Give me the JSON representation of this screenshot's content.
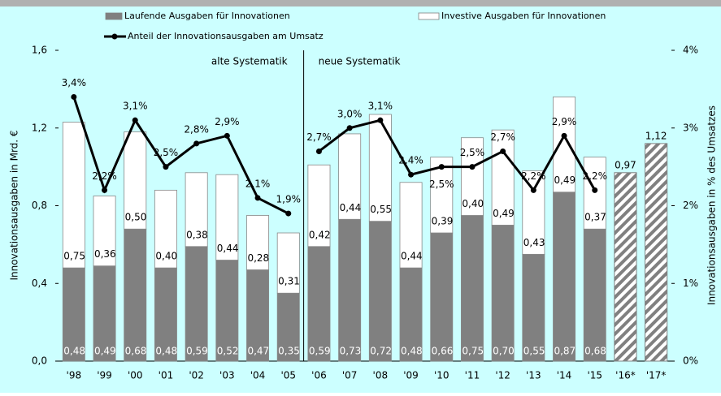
{
  "chart_data": {
    "type": "bar",
    "y_label": "Innovationsausgaben in Mrd. €",
    "y2_label": "Innovationsausgaben in % des Umsatzes",
    "categories": [
      "'98",
      "'99",
      "'00",
      "'01",
      "'02",
      "'03",
      "'04",
      "'05",
      "'06",
      "'07",
      "'08",
      "'09",
      "'10",
      "'11",
      "'12",
      "'13",
      "'14",
      "'15",
      "'16*",
      "'17*"
    ],
    "stacked": true,
    "series": [
      {
        "name": "Laufende Ausgaben für Innovationen",
        "color": "#808080",
        "values": [
          0.48,
          0.49,
          0.68,
          0.48,
          0.59,
          0.52,
          0.47,
          0.35,
          0.59,
          0.73,
          0.72,
          0.48,
          0.66,
          0.75,
          0.7,
          0.55,
          0.87,
          0.68,
          null,
          null
        ],
        "value_labels": [
          "0,48",
          "0,49",
          "0,68",
          "0,48",
          "0,59",
          "0,52",
          "0,47",
          "0,35",
          "0,59",
          "0,73",
          "0,72",
          "0,48",
          "0,66",
          "0,75",
          "0,70",
          "0,55",
          "0,87",
          "0,68",
          null,
          null
        ]
      },
      {
        "name": "Investive Ausgaben für Innovationen",
        "color": "#ffffff",
        "values": [
          0.75,
          0.36,
          0.5,
          0.4,
          0.38,
          0.44,
          0.28,
          0.31,
          0.42,
          0.44,
          0.55,
          0.44,
          0.39,
          0.4,
          0.49,
          0.43,
          0.49,
          0.37,
          null,
          null
        ],
        "value_labels": [
          "0,75",
          "0,36",
          "0,50",
          "0,40",
          "0,38",
          "0,44",
          "0,28",
          "0,31",
          "0,42",
          "0,44",
          "0,55",
          "0,44",
          "0,39",
          "0,40",
          "0,49",
          "0,43",
          "0,49",
          "0,37",
          null,
          null
        ]
      },
      {
        "name": "Anteil der Innovationsausgaben am Umsatz",
        "color": "#000000",
        "type": "line",
        "axis": "y2",
        "values": [
          3.4,
          2.2,
          3.1,
          2.5,
          2.8,
          2.9,
          2.1,
          1.9,
          2.7,
          3.0,
          3.1,
          2.4,
          2.5,
          2.5,
          2.7,
          2.2,
          2.9,
          2.2,
          null,
          null
        ],
        "value_labels": [
          "3,4%",
          "2,2%",
          "3,1%",
          "2,5%",
          "2,8%",
          "2,9%",
          "2,1%",
          "1,9%",
          "2,7%",
          "3,0%",
          "3,1%",
          "2,4%",
          "2,5%",
          "2,5%",
          "2,7%",
          "2,2%",
          "2,9%",
          "2,2%",
          null,
          null
        ]
      }
    ],
    "hatched": {
      "values": [
        null,
        null,
        null,
        null,
        null,
        null,
        null,
        null,
        null,
        null,
        null,
        null,
        null,
        null,
        null,
        null,
        null,
        null,
        0.97,
        1.12
      ],
      "value_labels": [
        null,
        null,
        null,
        null,
        null,
        null,
        null,
        null,
        null,
        null,
        null,
        null,
        null,
        null,
        null,
        null,
        null,
        null,
        "0,97",
        "1,12"
      ],
      "color": "#808080"
    },
    "segments": [
      {
        "label": "alte Systematik",
        "from": "'98",
        "to": "'05"
      },
      {
        "label": "neue Systematik",
        "from": "'06",
        "to": "'15"
      }
    ],
    "ylim": [
      0,
      1.6
    ],
    "yticks": [
      {
        "value": 0,
        "label": "0,0"
      },
      {
        "value": 0.4,
        "label": "0,4"
      },
      {
        "value": 0.8,
        "label": "0,8"
      },
      {
        "value": 1.2,
        "label": "1,2"
      },
      {
        "value": 1.6,
        "label": "1,6"
      }
    ],
    "y2lim": [
      0,
      4
    ],
    "y2ticks": [
      {
        "value": 0,
        "label": "0%"
      },
      {
        "value": 1,
        "label": "1%"
      },
      {
        "value": 2,
        "label": "2%"
      },
      {
        "value": 3,
        "label": "3%"
      },
      {
        "value": 4,
        "label": "4%"
      }
    ]
  }
}
